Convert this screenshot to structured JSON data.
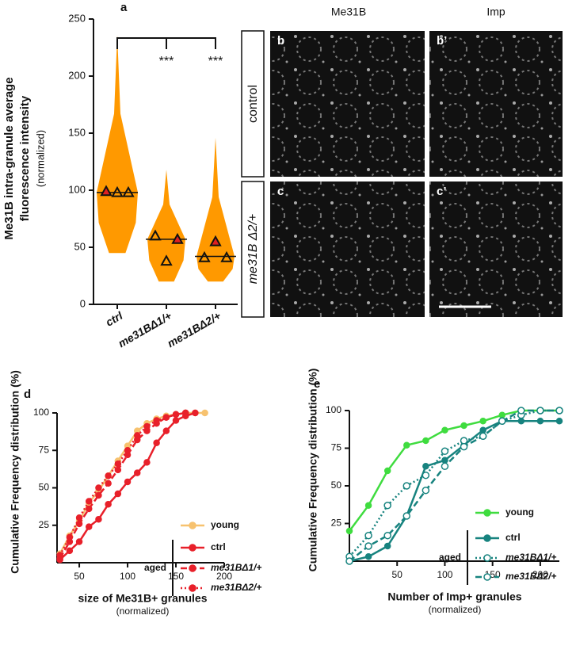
{
  "chart_data": [
    {
      "type": "swarm",
      "label": "a",
      "ylabel": [
        "Me31B intra-granule average",
        "fluorescence intensity",
        "(normalized)"
      ],
      "categories": [
        "ctrl",
        "me31BΔ1/+",
        "me31BΔ2/+"
      ],
      "ranges": [
        [
          45,
          236
        ],
        [
          20,
          118
        ],
        [
          20,
          146
        ]
      ],
      "medians": [
        98,
        57,
        42
      ],
      "replicates": [
        [
          99,
          98,
          98
        ],
        [
          60,
          38,
          57
        ],
        [
          41,
          55,
          41
        ]
      ],
      "highlight": [
        0,
        2,
        1
      ],
      "color": "#ff9900",
      "highlight_color": "#e02020",
      "annotations": [
        "***",
        "***"
      ],
      "ylim": [
        0,
        250
      ],
      "yticks": [
        0,
        50,
        100,
        150,
        200,
        250
      ]
    },
    {
      "type": "line",
      "label": "d",
      "ylabel": "Cumulative Frequency distribution (%)",
      "xlabel": "size of Me31B+ granules",
      "xsublabel": "(normalized)",
      "group": "aged",
      "xlim": [
        27,
        200
      ],
      "xticks": [
        50,
        100,
        150,
        200
      ],
      "ylim": [
        0,
        100
      ],
      "yticks": [
        25,
        50,
        75,
        100
      ],
      "x": [
        30,
        40,
        50,
        60,
        70,
        80,
        90,
        100,
        110,
        120,
        130,
        140,
        150,
        160,
        170,
        180
      ],
      "series": [
        {
          "name": "young",
          "color": "#f7c26f",
          "dash": "solid",
          "marker": "filled",
          "values": [
            6,
            18,
            28,
            40,
            48,
            58,
            68,
            78,
            88,
            93,
            96,
            98,
            99,
            100,
            100,
            100
          ]
        },
        {
          "name": "ctrl",
          "color": "#e8202a",
          "dash": "solid",
          "marker": "filled",
          "values": [
            2,
            8,
            14,
            24,
            29,
            39,
            46,
            54,
            60,
            67,
            80,
            88,
            95,
            98,
            100,
            null
          ]
        },
        {
          "name": "me31BΔ1/+",
          "color": "#e8202a",
          "dash": "dashed",
          "marker": "filled",
          "values": [
            3,
            14,
            26,
            36,
            45,
            53,
            62,
            72,
            82,
            88,
            93,
            97,
            99,
            100,
            null,
            null
          ]
        },
        {
          "name": "me31BΔ2/+",
          "color": "#e8202a",
          "dash": "dotted",
          "marker": "filled",
          "values": [
            5,
            17,
            30,
            41,
            50,
            58,
            66,
            75,
            85,
            91,
            95,
            97,
            99,
            100,
            null,
            null
          ]
        }
      ]
    },
    {
      "type": "line",
      "label": "e",
      "ylabel": "Cumulative Frequency distribution (%)",
      "xlabel": "Number of Imp+ granules",
      "xsublabel": "(normalized)",
      "group": "aged",
      "xlim": [
        0,
        220
      ],
      "xticks": [
        50,
        100,
        150,
        200
      ],
      "ylim": [
        0,
        100
      ],
      "yticks": [
        25,
        50,
        75,
        100
      ],
      "x": [
        0,
        20,
        40,
        60,
        80,
        100,
        120,
        140,
        160,
        180,
        200,
        220
      ],
      "series": [
        {
          "name": "young",
          "color": "#3fdc3f",
          "dash": "solid",
          "marker": "filled",
          "values": [
            20,
            37,
            60,
            77,
            80,
            87,
            90,
            93,
            97,
            100,
            100,
            100
          ]
        },
        {
          "name": "ctrl",
          "color": "#17837f",
          "dash": "solid",
          "marker": "filled",
          "values": [
            0,
            3,
            10,
            30,
            63,
            67,
            77,
            87,
            93,
            93,
            93,
            93
          ]
        },
        {
          "name": "me31BΔ1/+",
          "color": "#17837f",
          "dash": "dotted",
          "marker": "open",
          "values": [
            3,
            17,
            37,
            50,
            57,
            73,
            80,
            83,
            93,
            97,
            100,
            100
          ]
        },
        {
          "name": "me31BΔ2/+",
          "color": "#17837f",
          "dash": "dashed",
          "marker": "open",
          "values": [
            0,
            10,
            17,
            30,
            47,
            63,
            76,
            83,
            93,
            100,
            100,
            100
          ]
        }
      ]
    }
  ],
  "images": {
    "columns": [
      "Me31B",
      "Imp"
    ],
    "rows": [
      "control",
      "me31B Δ2/+"
    ],
    "panels": [
      "b",
      "b’",
      "c",
      "c’"
    ]
  }
}
